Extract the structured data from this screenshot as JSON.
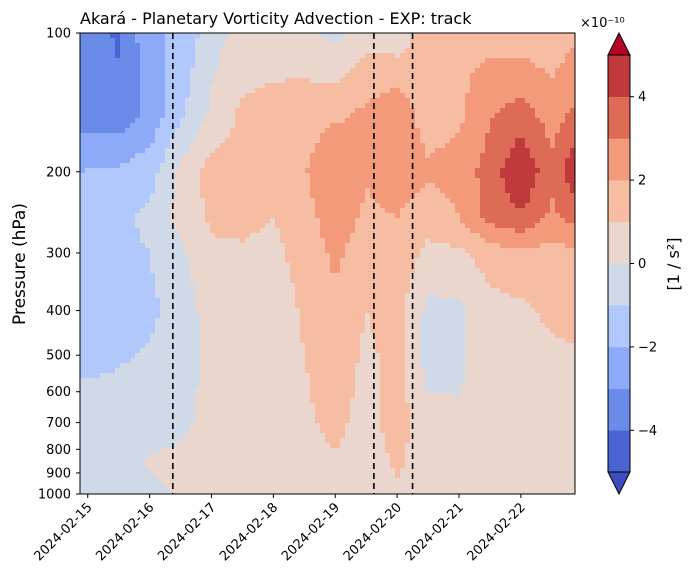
{
  "chart_data": {
    "type": "heatmap",
    "subtype": "filled-contour",
    "title": "Akará - Planetary Vorticity Advection - EXP: track",
    "xlabel": "",
    "ylabel": "Pressure (hPa)",
    "yscale": "log",
    "yinverted": true,
    "ylim": [
      1000,
      100
    ],
    "yticks": [
      100,
      200,
      300,
      400,
      500,
      600,
      700,
      800,
      900,
      1000
    ],
    "ytick_labels": [
      "100",
      "200",
      "300",
      "400",
      "500",
      "600",
      "700",
      "800",
      "900",
      "1000"
    ],
    "xlim": [
      "2024-02-14 21:00",
      "2024-02-22 21:00"
    ],
    "xticks": [
      "2024-02-15",
      "2024-02-16",
      "2024-02-17",
      "2024-02-18",
      "2024-02-19",
      "2024-02-20",
      "2024-02-21",
      "2024-02-22"
    ],
    "vertical_lines": [
      "2024-02-16 09:00",
      "2024-02-19 15:00",
      "2024-02-20 06:00"
    ],
    "vertical_line_style": "dashed",
    "colorbar": {
      "label": "[1 / s²]",
      "scale_label": "×10⁻¹⁰",
      "levels": [
        -5,
        -4,
        -3,
        -2,
        -1,
        0,
        1,
        2,
        3,
        4,
        5
      ],
      "ticks": [
        -4,
        -2,
        0,
        2,
        4
      ],
      "tick_labels": [
        "−4",
        "−2",
        "0",
        "2",
        "4"
      ],
      "extend": "both",
      "cmap": "coolwarm",
      "colors": [
        "#4a63d5",
        "#6a8be8",
        "#8daaf8",
        "#b0c8fb",
        "#cfd9e8",
        "#ead6cc",
        "#f6bda3",
        "#f29a7a",
        "#dd6b55",
        "#c03a3c",
        "#b40426"
      ],
      "under_color": "#3b4cc0",
      "over_color": "#b40426"
    },
    "grid_x": [
      "2024-02-14 21:00",
      "2024-02-15 12:00",
      "2024-02-16 00:00",
      "2024-02-16 12:00",
      "2024-02-17 00:00",
      "2024-02-17 12:00",
      "2024-02-18 00:00",
      "2024-02-18 12:00",
      "2024-02-19 00:00",
      "2024-02-19 12:00",
      "2024-02-20 00:00",
      "2024-02-20 12:00",
      "2024-02-21 00:00",
      "2024-02-21 12:00",
      "2024-02-22 00:00",
      "2024-02-22 12:00",
      "2024-02-22 21:00"
    ],
    "grid_p": [
      100,
      150,
      200,
      250,
      300,
      400,
      500,
      700,
      850,
      1000
    ],
    "z": [
      [
        -3.2,
        -4.2,
        -2.2,
        -1.8,
        -0.4,
        0.3,
        0.4,
        0.2,
        -0.3,
        0.6,
        0.3,
        1.6,
        1.8,
        1.6,
        1.4,
        1.3,
        1.8
      ],
      [
        -3.4,
        -3.6,
        -2.8,
        -1.2,
        0.2,
        1.2,
        1.4,
        1.6,
        1.8,
        2.2,
        2.8,
        1.4,
        1.8,
        2.9,
        3.4,
        2.6,
        3.2
      ],
      [
        -2.0,
        -1.8,
        -1.4,
        0.2,
        1.4,
        1.5,
        1.4,
        1.9,
        3.0,
        2.1,
        2.8,
        2.2,
        2.5,
        3.4,
        5.0,
        3.2,
        4.8
      ],
      [
        -1.4,
        -1.2,
        -0.8,
        0.4,
        1.2,
        1.2,
        1.0,
        1.6,
        2.6,
        1.8,
        2.0,
        1.3,
        2.0,
        3.4,
        3.9,
        2.8,
        3.4
      ],
      [
        -1.4,
        -1.2,
        -1.0,
        -0.2,
        0.8,
        0.9,
        0.8,
        1.3,
        2.2,
        1.5,
        1.7,
        0.8,
        0.8,
        1.5,
        1.8,
        1.6,
        1.8
      ],
      [
        -1.6,
        -1.4,
        -1.2,
        -0.6,
        0.5,
        0.7,
        0.6,
        1.1,
        1.8,
        1.0,
        1.4,
        -0.3,
        -0.2,
        0.6,
        0.8,
        1.2,
        1.4
      ],
      [
        -1.3,
        -1.1,
        -0.9,
        -0.5,
        0.3,
        0.5,
        0.5,
        1.0,
        1.6,
        0.8,
        1.3,
        -0.4,
        -0.3,
        0.8,
        0.6,
        0.8,
        0.9
      ],
      [
        -0.5,
        -0.6,
        -0.4,
        -0.2,
        0.3,
        0.5,
        0.4,
        0.8,
        1.3,
        0.6,
        1.5,
        0.3,
        0.2,
        0.6,
        0.3,
        0.6,
        0.6
      ],
      [
        -0.4,
        -0.3,
        0.1,
        0.2,
        0.2,
        0.4,
        0.3,
        0.5,
        0.9,
        0.4,
        1.2,
        0.3,
        0.2,
        0.4,
        0.3,
        0.3,
        0.3
      ],
      [
        -0.6,
        -0.4,
        -0.2,
        0.1,
        0.2,
        0.3,
        0.3,
        0.4,
        0.6,
        0.3,
        0.8,
        0.2,
        0.1,
        0.2,
        0.2,
        0.2,
        0.2
      ]
    ]
  }
}
